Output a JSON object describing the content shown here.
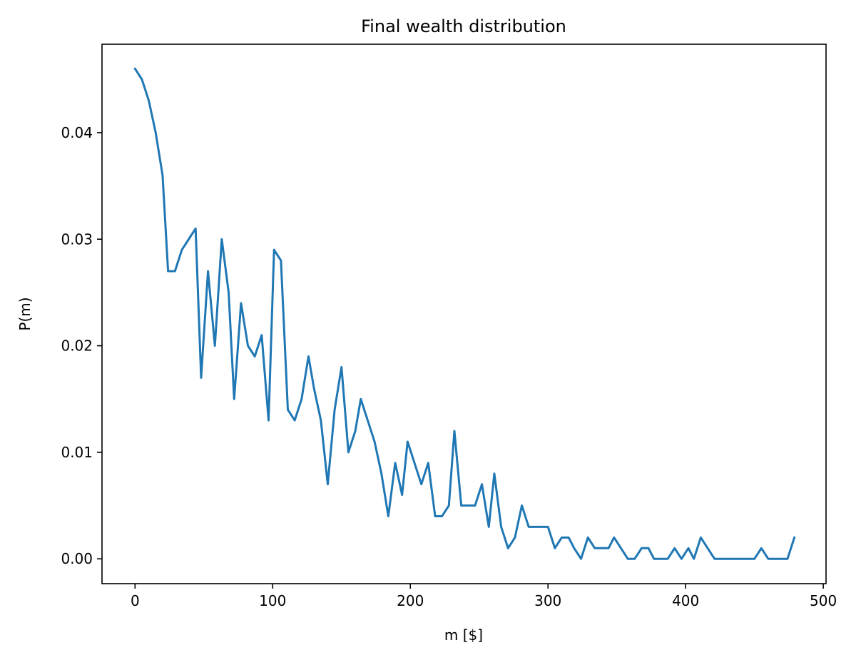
{
  "chart_data": {
    "type": "line",
    "title": "Final wealth distribution",
    "xlabel": "m [$]",
    "ylabel": "P(m)",
    "xlim": [
      -24,
      502
    ],
    "ylim": [
      -0.00233,
      0.0483
    ],
    "xticks": [
      0,
      100,
      200,
      300,
      400,
      500
    ],
    "xtick_labels": [
      "0",
      "100",
      "200",
      "300",
      "400",
      "500"
    ],
    "yticks": [
      0.0,
      0.01,
      0.02,
      0.03,
      0.04
    ],
    "ytick_labels": [
      "0.00",
      "0.01",
      "0.02",
      "0.03",
      "0.04"
    ],
    "grid": false,
    "series": [
      {
        "color": "#1f77b4",
        "x": [
          0,
          5,
          10,
          15,
          20,
          24,
          29,
          34,
          39,
          44,
          48,
          53,
          58,
          63,
          68,
          72,
          77,
          82,
          87,
          92,
          97,
          101,
          106,
          111,
          116,
          121,
          126,
          130,
          135,
          140,
          145,
          150,
          155,
          160,
          164,
          169,
          174,
          179,
          184,
          189,
          194,
          198,
          203,
          208,
          213,
          218,
          223,
          228,
          232,
          237,
          242,
          247,
          252,
          257,
          261,
          266,
          271,
          276,
          281,
          286,
          290,
          295,
          300,
          305,
          310,
          315,
          319,
          324,
          329,
          334,
          339,
          344,
          348,
          353,
          358,
          363,
          368,
          373,
          377,
          382,
          387,
          392,
          397,
          402,
          406,
          411,
          416,
          421,
          426,
          431,
          436,
          440,
          445,
          450,
          455,
          460,
          465,
          469,
          474,
          479
        ],
        "y": [
          0.046,
          0.045,
          0.043,
          0.04,
          0.036,
          0.027,
          0.027,
          0.029,
          0.03,
          0.031,
          0.017,
          0.027,
          0.02,
          0.03,
          0.025,
          0.015,
          0.024,
          0.02,
          0.019,
          0.021,
          0.013,
          0.029,
          0.028,
          0.014,
          0.013,
          0.015,
          0.019,
          0.016,
          0.013,
          0.007,
          0.014,
          0.018,
          0.01,
          0.012,
          0.015,
          0.013,
          0.011,
          0.008,
          0.004,
          0.009,
          0.006,
          0.011,
          0.009,
          0.007,
          0.009,
          0.004,
          0.004,
          0.005,
          0.012,
          0.005,
          0.005,
          0.005,
          0.007,
          0.003,
          0.008,
          0.003,
          0.001,
          0.002,
          0.005,
          0.003,
          0.003,
          0.003,
          0.003,
          0.001,
          0.002,
          0.002,
          0.001,
          0.0,
          0.002,
          0.001,
          0.001,
          0.001,
          0.002,
          0.001,
          0.0,
          0.0,
          0.001,
          0.001,
          0.0,
          0.0,
          0.0,
          0.001,
          0.0,
          0.001,
          0.0,
          0.002,
          0.001,
          0.0,
          0.0,
          0.0,
          0.0,
          0.0,
          0.0,
          0.0,
          0.001,
          0.0,
          0.0,
          0.0,
          0.0,
          0.002
        ]
      }
    ]
  }
}
